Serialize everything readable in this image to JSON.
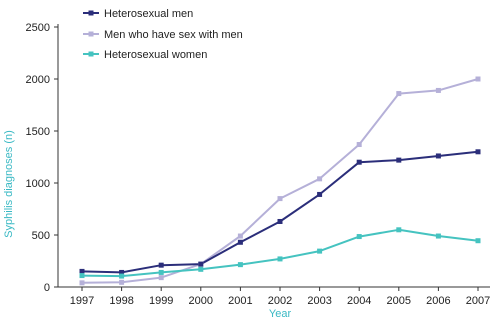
{
  "chart_data": {
    "type": "line",
    "x": [
      "1997",
      "1998",
      "1999",
      "2000",
      "2001",
      "2002",
      "2003",
      "2004",
      "2005",
      "2006",
      "2007"
    ],
    "xlabel": "Year",
    "ylabel": "Syphilis diagnoses (n)",
    "ylim": [
      0,
      2500
    ],
    "yticks": [
      "0",
      "500",
      "1000",
      "1500",
      "2000",
      "2500"
    ],
    "grid": false,
    "legend_position": "top-left",
    "series": [
      {
        "name": "Heterosexual men",
        "color": "#2b2e7a",
        "values": [
          150,
          140,
          210,
          220,
          430,
          630,
          890,
          1200,
          1220,
          1260,
          1300
        ]
      },
      {
        "name": "Men who have sex with men",
        "color": "#b5b0d8",
        "values": [
          40,
          45,
          90,
          220,
          490,
          850,
          1040,
          1370,
          1860,
          1890,
          2000
        ]
      },
      {
        "name": "Heterosexual women",
        "color": "#45c3c0",
        "values": [
          110,
          105,
          140,
          170,
          215,
          270,
          345,
          485,
          550,
          490,
          445
        ]
      }
    ],
    "axis_label_color": "#3ab9c4",
    "axis_color": "#333333"
  }
}
